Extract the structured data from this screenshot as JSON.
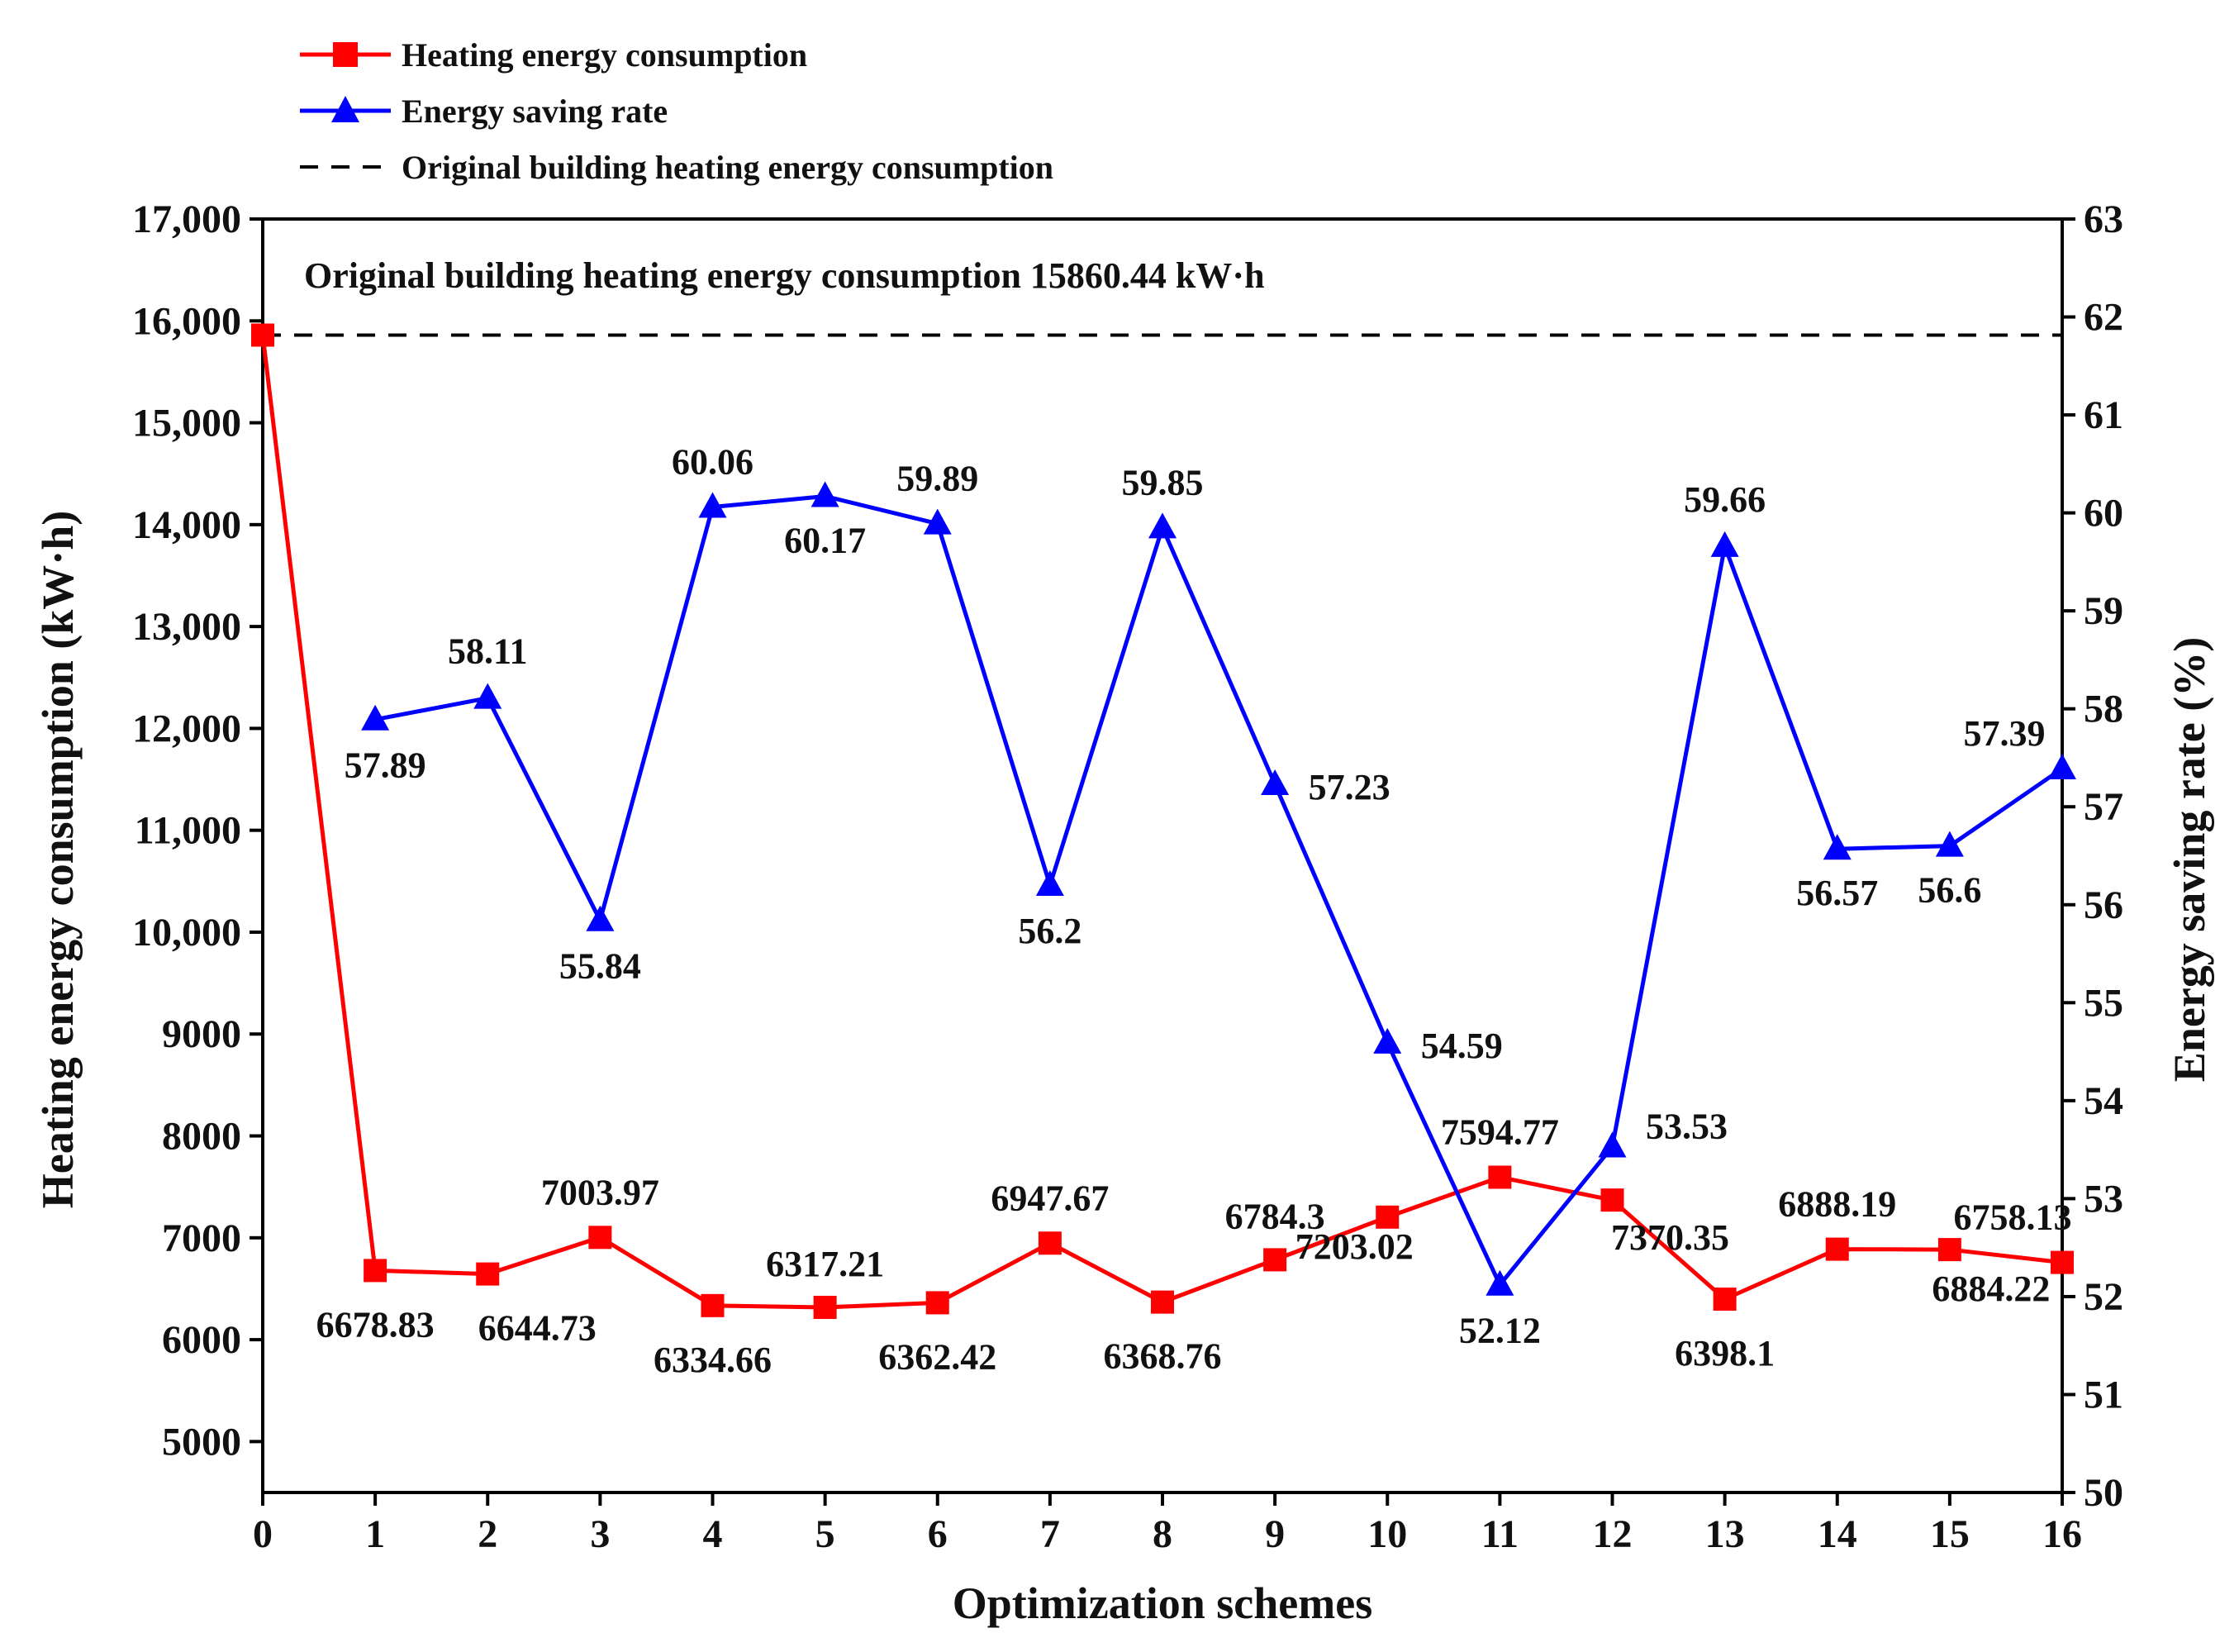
{
  "chart_data": {
    "type": "line",
    "xlabel": "Optimization schemes",
    "ylabel_left": "Heating energy consumption (kW·h)",
    "ylabel_right": "Energy saving rate (%)",
    "x_ticks": [
      "0",
      "1",
      "2",
      "3",
      "4",
      "5",
      "6",
      "7",
      "8",
      "9",
      "10",
      "11",
      "12",
      "13",
      "14",
      "15",
      "16"
    ],
    "y_left_ticks": [
      "5000",
      "6000",
      "7000",
      "8000",
      "9000",
      "10,000",
      "11,000",
      "12,000",
      "13,000",
      "14,000",
      "15,000",
      "16,000",
      "17,000"
    ],
    "y_right_ticks": [
      "50",
      "51",
      "52",
      "53",
      "54",
      "55",
      "56",
      "57",
      "58",
      "59",
      "60",
      "61",
      "62",
      "63"
    ],
    "xlim": [
      0,
      16
    ],
    "ylim_left": [
      4500,
      17000
    ],
    "ylim_right": [
      50,
      63
    ],
    "legend_position": "top-left-outside",
    "annotation": "Original building heating energy consumption 15860.44 kW·h",
    "reference_line": {
      "name": "Original building heating energy consumption",
      "value": 15860.44,
      "axis": "left",
      "color": "#000000"
    },
    "series": [
      {
        "name": "Heating energy consumption",
        "axis": "left",
        "color": "#ff0000",
        "marker": "square",
        "x": [
          0,
          1,
          2,
          3,
          4,
          5,
          6,
          7,
          8,
          9,
          10,
          11,
          12,
          13,
          14,
          15,
          16
        ],
        "values": [
          15860.44,
          6678.83,
          6644.73,
          7003.97,
          6334.66,
          6317.21,
          6362.42,
          6947.67,
          6368.76,
          6784.3,
          7203.02,
          7594.77,
          7370.35,
          6398.1,
          6888.19,
          6884.22,
          6758.13
        ],
        "labels": [
          "",
          "6678.83",
          "6644.73",
          "7003.97",
          "6334.66",
          "6317.21",
          "6362.42",
          "6947.67",
          "6368.76",
          "6784.3",
          "7203.02",
          "7594.77",
          "7370.35",
          "6398.1",
          "6888.19",
          "6884.22",
          "6758.13"
        ]
      },
      {
        "name": "Energy saving rate",
        "axis": "right",
        "color": "#0000ff",
        "marker": "triangle",
        "x": [
          1,
          2,
          3,
          4,
          5,
          6,
          7,
          8,
          9,
          10,
          11,
          12,
          13,
          14,
          15,
          16
        ],
        "values": [
          57.89,
          58.11,
          55.84,
          60.06,
          60.17,
          59.89,
          56.2,
          59.85,
          57.23,
          54.59,
          52.12,
          53.53,
          59.66,
          56.57,
          56.6,
          57.39
        ],
        "labels": [
          "57.89",
          "58.11",
          "55.84",
          "60.06",
          "60.17",
          "59.89",
          "56.2",
          "59.85",
          "57.23",
          "54.59",
          "52.12",
          "53.53",
          "59.66",
          "56.57",
          "56.6",
          "57.39"
        ]
      }
    ]
  }
}
